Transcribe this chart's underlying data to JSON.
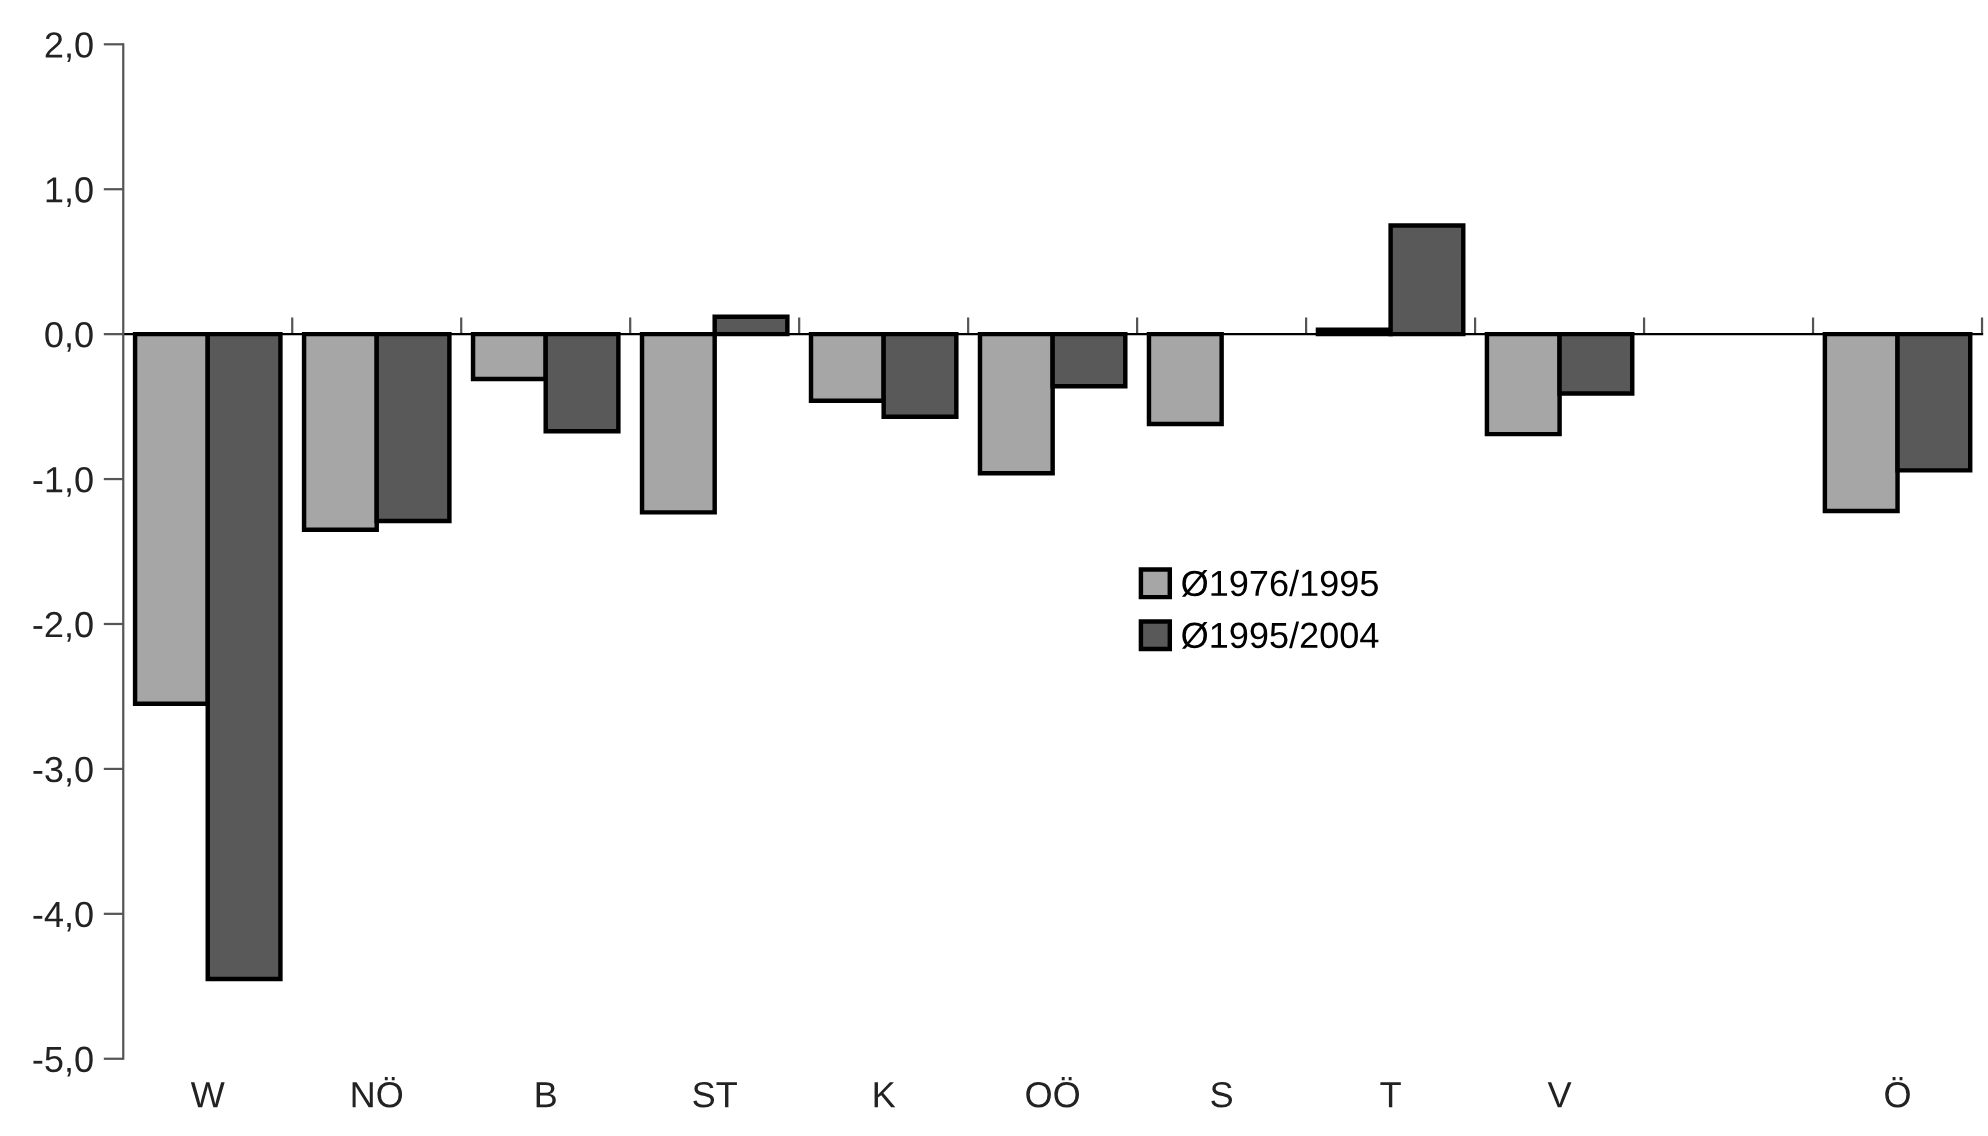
{
  "chart_data": {
    "type": "bar",
    "categories": [
      "W",
      "NÖ",
      "B",
      "ST",
      "K",
      "OÖ",
      "S",
      "T",
      "V",
      null,
      "Ö"
    ],
    "series": [
      {
        "name": "Ø1976/1995",
        "color": "#a6a6a6",
        "values": [
          -2.55,
          -1.35,
          -0.31,
          -1.23,
          -0.46,
          -0.96,
          -0.62,
          0.03,
          -0.69,
          null,
          -1.22
        ]
      },
      {
        "name": "Ø1995/2004",
        "color": "#595959",
        "values": [
          -4.45,
          -1.29,
          -0.67,
          0.12,
          -0.57,
          -0.36,
          null,
          0.75,
          -0.41,
          null,
          -0.94
        ]
      }
    ],
    "ylim": [
      -5,
      2
    ],
    "yticks": [
      {
        "value": -5,
        "label": "-5,0"
      },
      {
        "value": -4,
        "label": "-4,0"
      },
      {
        "value": -3,
        "label": "-3,0"
      },
      {
        "value": -2,
        "label": "-2,0"
      },
      {
        "value": -1,
        "label": "-1,0"
      },
      {
        "value": 0,
        "label": "0,0"
      },
      {
        "value": 1,
        "label": "1,0"
      },
      {
        "value": 2,
        "label": "2,0"
      }
    ],
    "legend": "center"
  }
}
